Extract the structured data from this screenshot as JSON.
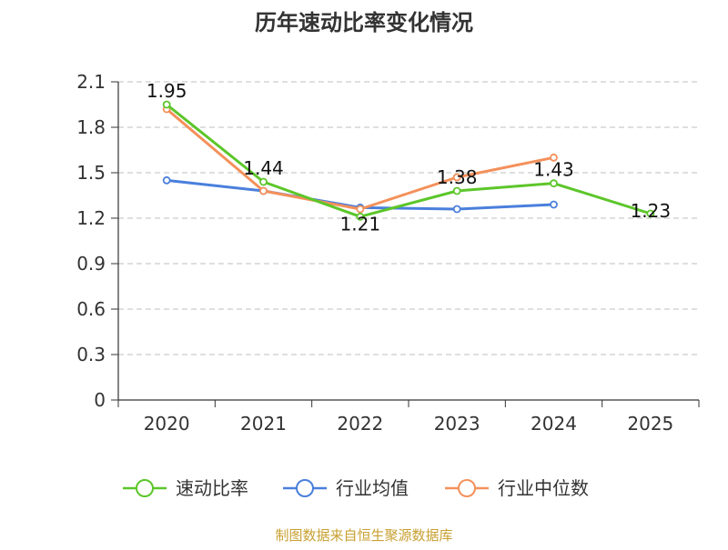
{
  "chart_data": {
    "type": "line",
    "title": "历年速动比率变化情况",
    "categories": [
      "2020",
      "2021",
      "2022",
      "2023",
      "2024",
      "2025"
    ],
    "ylim": [
      0,
      2.1
    ],
    "yticks": [
      "0",
      "0.3",
      "0.6",
      "0.9",
      "1.2",
      "1.5",
      "1.8",
      "2.1"
    ],
    "grid": true,
    "legend_position": "bottom",
    "series": [
      {
        "name": "速动比率",
        "color": "#5cc62a",
        "values": [
          1.95,
          1.44,
          1.21,
          1.38,
          1.43,
          1.23
        ],
        "labels": [
          "1.95",
          "1.44",
          "1.21",
          "1.38",
          "1.43",
          "1.23"
        ]
      },
      {
        "name": "行业均值",
        "color": "#4a7fdc",
        "values": [
          1.45,
          1.38,
          1.27,
          1.26,
          1.29,
          null
        ]
      },
      {
        "name": "行业中位数",
        "color": "#f4905a",
        "values": [
          1.92,
          1.38,
          1.26,
          1.47,
          1.6,
          null
        ]
      }
    ],
    "source": "制图数据来自恒生聚源数据库"
  }
}
